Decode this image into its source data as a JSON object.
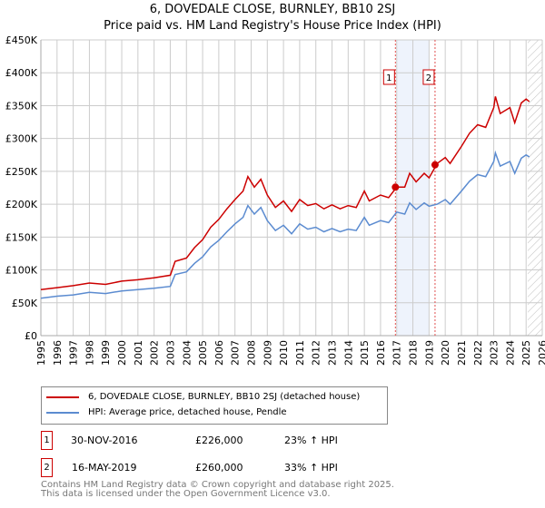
{
  "title": "6, DOVEDALE CLOSE, BURNLEY, BB10 2SJ",
  "subtitle": "Price paid vs. HM Land Registry's House Price Index (HPI)",
  "chart_data": {
    "type": "line",
    "title": "6, DOVEDALE CLOSE, BURNLEY, BB10 2SJ",
    "subtitle": "Price paid vs. HM Land Registry's House Price Index (HPI)",
    "xlim": [
      1995,
      2026
    ],
    "ylim": [
      0,
      450000
    ],
    "x_ticks": [
      "1995",
      "1996",
      "1997",
      "1998",
      "1999",
      "2000",
      "2001",
      "2002",
      "2003",
      "2004",
      "2005",
      "2006",
      "2007",
      "2008",
      "2009",
      "2010",
      "2011",
      "2012",
      "2013",
      "2014",
      "2015",
      "2016",
      "2017",
      "2018",
      "2019",
      "2020",
      "2021",
      "2022",
      "2023",
      "2024",
      "2025",
      "2026"
    ],
    "y_ticks": [
      {
        "v": 0,
        "label": "£0"
      },
      {
        "v": 50000,
        "label": "£50K"
      },
      {
        "v": 100000,
        "label": "£100K"
      },
      {
        "v": 150000,
        "label": "£150K"
      },
      {
        "v": 200000,
        "label": "£200K"
      },
      {
        "v": 250000,
        "label": "£250K"
      },
      {
        "v": 300000,
        "label": "£300K"
      },
      {
        "v": 350000,
        "label": "£350K"
      },
      {
        "v": 400000,
        "label": "£400K"
      },
      {
        "v": 450000,
        "label": "£450K"
      }
    ],
    "grid": true,
    "x": [
      1995,
      1996,
      1997,
      1998,
      1999,
      2000,
      2001,
      2002,
      2003,
      2003.3,
      2004,
      2004.5,
      2005,
      2005.5,
      2006,
      2006.5,
      2007,
      2007.5,
      2007.8,
      2008.2,
      2008.6,
      2009,
      2009.5,
      2010,
      2010.5,
      2011,
      2011.5,
      2012,
      2012.5,
      2013,
      2013.5,
      2014,
      2014.5,
      2015,
      2015.3,
      2016,
      2016.5,
      2017,
      2017.5,
      2017.8,
      2018.2,
      2018.7,
      2019,
      2019.5,
      2020,
      2020.3,
      2021,
      2021.5,
      2022,
      2022.5,
      2023,
      2023.1,
      2023.4,
      2024,
      2024.3,
      2024.7,
      2025,
      2025.2
    ],
    "series": [
      {
        "name": "6, DOVEDALE CLOSE, BURNLEY, BB10 2SJ (detached house)",
        "color": "#cc0000",
        "values": [
          70,
          73,
          76,
          80,
          78,
          83,
          85,
          88,
          92,
          113,
          118,
          134,
          146,
          165,
          177,
          193,
          207,
          220,
          242,
          226,
          238,
          214,
          195,
          205,
          189,
          207,
          198,
          201,
          193,
          199,
          193,
          198,
          195,
          220,
          205,
          214,
          210,
          226,
          226,
          247,
          234,
          247,
          240,
          262,
          271,
          262,
          288,
          308,
          321,
          317,
          347,
          364,
          338,
          347,
          324,
          354,
          360,
          356
        ]
      },
      {
        "name": "HPI: Average price, detached house, Pendle",
        "color": "#5b8bd0",
        "values": [
          57,
          60,
          62,
          66,
          64,
          68,
          70,
          72,
          75,
          93,
          97,
          110,
          120,
          135,
          145,
          158,
          170,
          180,
          198,
          185,
          195,
          175,
          160,
          168,
          155,
          170,
          162,
          165,
          158,
          163,
          158,
          162,
          160,
          180,
          168,
          175,
          172,
          188,
          185,
          202,
          192,
          202,
          197,
          200,
          207,
          200,
          220,
          235,
          245,
          242,
          265,
          278,
          258,
          265,
          247,
          270,
          275,
          272
        ]
      }
    ],
    "value_unit": "thousand GBP",
    "shaded_range": [
      2017,
      2019
    ],
    "forecast_hatch_from": 2025.1,
    "sales": [
      {
        "id": "1",
        "x": 2016.92,
        "value": 226000
      },
      {
        "id": "2",
        "x": 2019.37,
        "value": 260000
      }
    ],
    "legend_position": "bottom"
  },
  "legend": [
    {
      "label": "6, DOVEDALE CLOSE, BURNLEY, BB10 2SJ (detached house)",
      "color": "#cc0000"
    },
    {
      "label": "HPI: Average price, detached house, Pendle",
      "color": "#5b8bd0"
    }
  ],
  "sales_table": [
    {
      "id": "1",
      "date": "30-NOV-2016",
      "price": "£226,000",
      "hpi": "23% ↑ HPI"
    },
    {
      "id": "2",
      "date": "16-MAY-2019",
      "price": "£260,000",
      "hpi": "33% ↑ HPI"
    }
  ],
  "footer": {
    "line1": "Contains HM Land Registry data © Crown copyright and database right 2025.",
    "line2": "This data is licensed under the Open Government Licence v3.0."
  }
}
